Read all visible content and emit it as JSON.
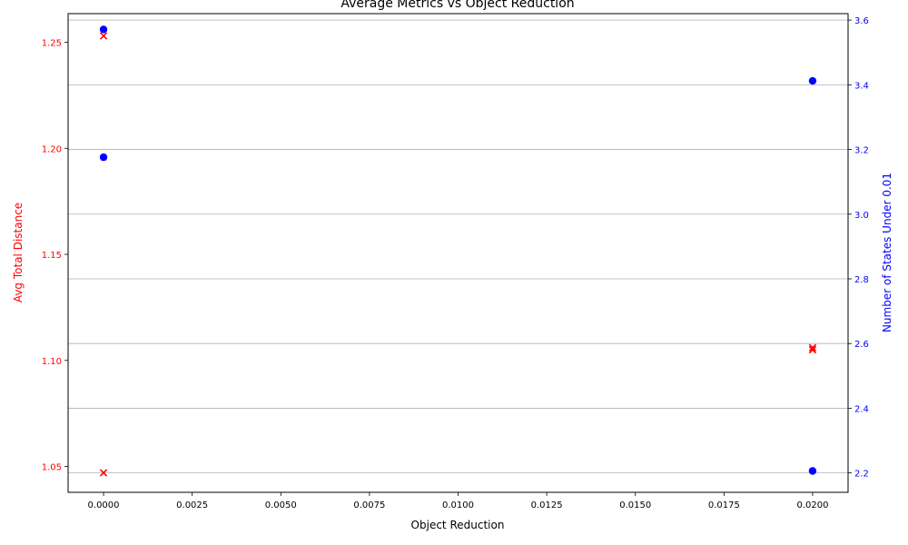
{
  "chart_data": {
    "type": "scatter",
    "title": "Average Metrics vs Object Reduction",
    "xlabel": "Object Reduction",
    "ylabel_left": "Avg Total Distance",
    "ylabel_right": "Number of States Under 0.01",
    "xlim": [
      -0.001,
      0.021
    ],
    "ylim_left": [
      1.0378,
      1.2635
    ],
    "ylim_right": [
      2.14,
      3.62
    ],
    "x_ticks": [
      0.0,
      0.0025,
      0.005,
      0.0075,
      0.01,
      0.0125,
      0.015,
      0.0175,
      0.02
    ],
    "x_tick_labels": [
      "0.0000",
      "0.0025",
      "0.0050",
      "0.0075",
      "0.0100",
      "0.0125",
      "0.0150",
      "0.0175",
      "0.0200"
    ],
    "y_left_ticks": [
      1.05,
      1.1,
      1.15,
      1.2,
      1.25
    ],
    "y_left_tick_labels": [
      "1.05",
      "1.10",
      "1.15",
      "1.20",
      "1.25"
    ],
    "y_right_ticks": [
      2.2,
      2.4,
      2.6,
      2.8,
      3.0,
      3.2,
      3.4,
      3.6
    ],
    "y_right_tick_labels": [
      "2.2",
      "2.4",
      "2.6",
      "2.8",
      "3.0",
      "3.2",
      "3.4",
      "3.6"
    ],
    "grid": "horizontal (right axis)",
    "series": [
      {
        "axis": "left",
        "marker": "x",
        "color": "#ff0000",
        "points": [
          {
            "x": 0.0,
            "y": 1.047
          },
          {
            "x": 0.0,
            "y": 1.253
          },
          {
            "x": 0.02,
            "y": 1.105
          },
          {
            "x": 0.02,
            "y": 1.106
          }
        ]
      },
      {
        "axis": "right",
        "marker": "o",
        "color": "#0000ff",
        "points": [
          {
            "x": 0.0,
            "y": 3.571
          },
          {
            "x": 0.0,
            "y": 3.176
          },
          {
            "x": 0.02,
            "y": 3.412
          },
          {
            "x": 0.02,
            "y": 2.206
          }
        ]
      }
    ]
  }
}
